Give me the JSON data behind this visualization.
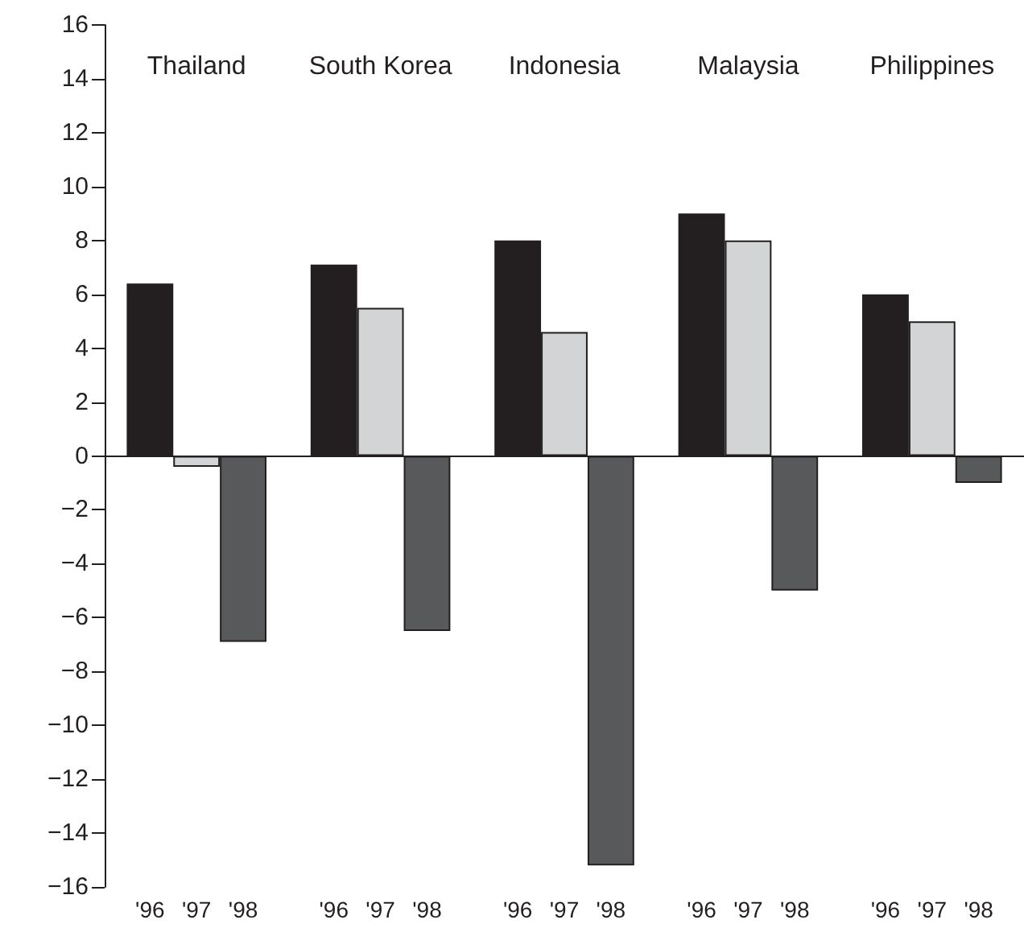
{
  "chart_data": {
    "type": "bar",
    "categories": [
      "Thailand",
      "South Korea",
      "Indonesia",
      "Malaysia",
      "Philippines"
    ],
    "series": [
      {
        "name": "'96",
        "color": "#231f20",
        "values": [
          6.4,
          7.1,
          8.0,
          9.0,
          6.0
        ]
      },
      {
        "name": "'97",
        "color": "#d3d4d5",
        "values": [
          -0.4,
          5.5,
          4.6,
          8.0,
          5.0
        ]
      },
      {
        "name": "'98",
        "color": "#58595b",
        "values": [
          -6.9,
          -6.5,
          -15.2,
          -5.0,
          -1.0
        ]
      }
    ],
    "ylim": [
      -16,
      16
    ],
    "yticks": [
      {
        "value": -16,
        "label": "−16"
      },
      {
        "value": -14,
        "label": "−14"
      },
      {
        "value": -12,
        "label": "−12"
      },
      {
        "value": -10,
        "label": "−10"
      },
      {
        "value": -8,
        "label": "−8"
      },
      {
        "value": -6,
        "label": "−6"
      },
      {
        "value": -4,
        "label": "−4"
      },
      {
        "value": -2,
        "label": "−2"
      },
      0,
      2,
      4,
      6,
      8,
      10,
      12,
      14,
      16
    ]
  }
}
